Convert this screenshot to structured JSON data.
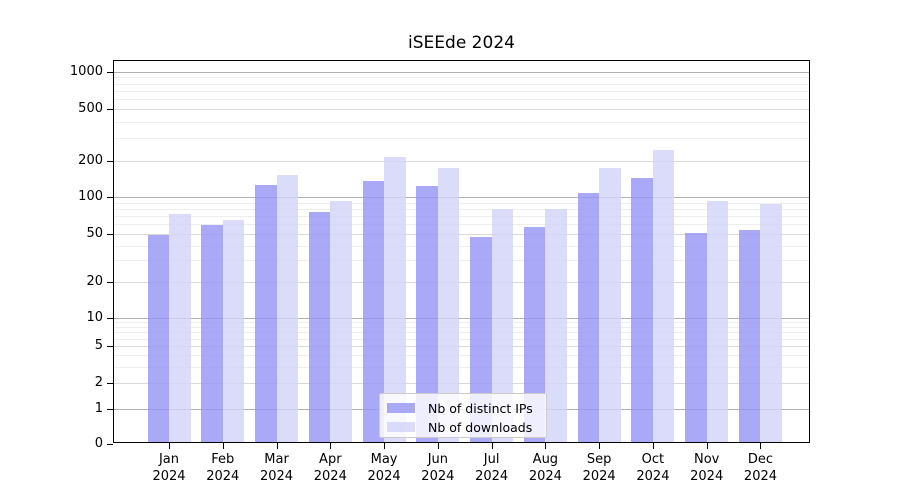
{
  "chart_data": {
    "type": "bar",
    "title": "iSEEde 2024",
    "scale": "symlog",
    "grid": "horizontal major+minor",
    "categories": [
      "Jan",
      "Feb",
      "Mar",
      "Apr",
      "May",
      "Jun",
      "Jul",
      "Aug",
      "Sep",
      "Oct",
      "Nov",
      "Dec"
    ],
    "x_year_label": "2024",
    "series": [
      {
        "name": "Nb of distinct IPs",
        "color_hex": "#a9a9f7",
        "fill": "rgba(148,148,245,0.8)",
        "values": [
          47,
          57,
          120,
          73,
          130,
          118,
          45,
          55,
          103,
          139,
          49,
          52
        ]
      },
      {
        "name": "Nb of downloads",
        "color_hex": "#dcdcf9",
        "fill": "rgba(210,210,249,0.8)",
        "values": [
          70,
          63,
          145,
          89,
          204,
          166,
          77,
          77,
          167,
          234,
          89,
          85
        ]
      }
    ],
    "y_ticks": [
      0,
      1,
      2,
      5,
      10,
      20,
      50,
      100,
      200,
      500,
      1000
    ],
    "ylim": [
      0,
      1250
    ],
    "legend": {
      "position": "bottom-center",
      "labels": [
        "Nb of distinct IPs",
        "Nb of downloads"
      ]
    }
  }
}
